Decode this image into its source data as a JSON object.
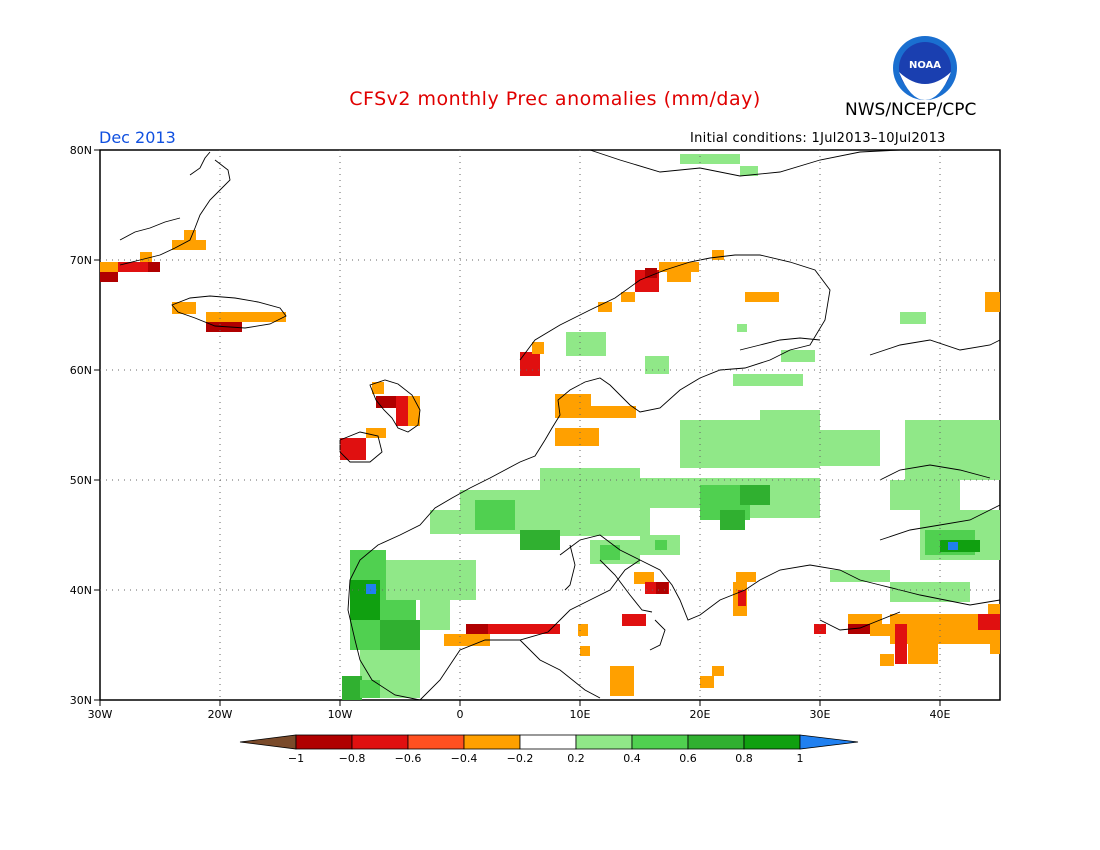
{
  "header": {
    "title": "CFSv2 monthly Prec anomalies (mm/day)",
    "agency": "NWS/NCEP/CPC",
    "logo_text": "NOAA",
    "valid_month": "Dec 2013",
    "initial_conditions": "Initial conditions: 1Jul2013–10Jul2013"
  },
  "axes": {
    "x_ticks": [
      "30W",
      "20W",
      "10W",
      "0",
      "10E",
      "20E",
      "30E",
      "40E"
    ],
    "y_ticks": [
      "80N",
      "70N",
      "60N",
      "50N",
      "40N",
      "30N"
    ],
    "lon_range": [
      -30,
      45
    ],
    "lat_range": [
      30,
      80
    ],
    "grid": "dotted"
  },
  "colorbar": {
    "labels": [
      "−1",
      "−0.8",
      "−0.6",
      "−0.4",
      "−0.2",
      "0.2",
      "0.4",
      "0.6",
      "0.8",
      "1"
    ],
    "colors": [
      "#7a4a2a",
      "#b00000",
      "#e01010",
      "#ff5020",
      "#ffa000",
      "#ffffff",
      "#90e888",
      "#50d050",
      "#30b030",
      "#10a010",
      "#2080f0"
    ]
  },
  "colors": {
    "title": "#e00000",
    "month": "#1050e0",
    "coast": "#000000"
  }
}
